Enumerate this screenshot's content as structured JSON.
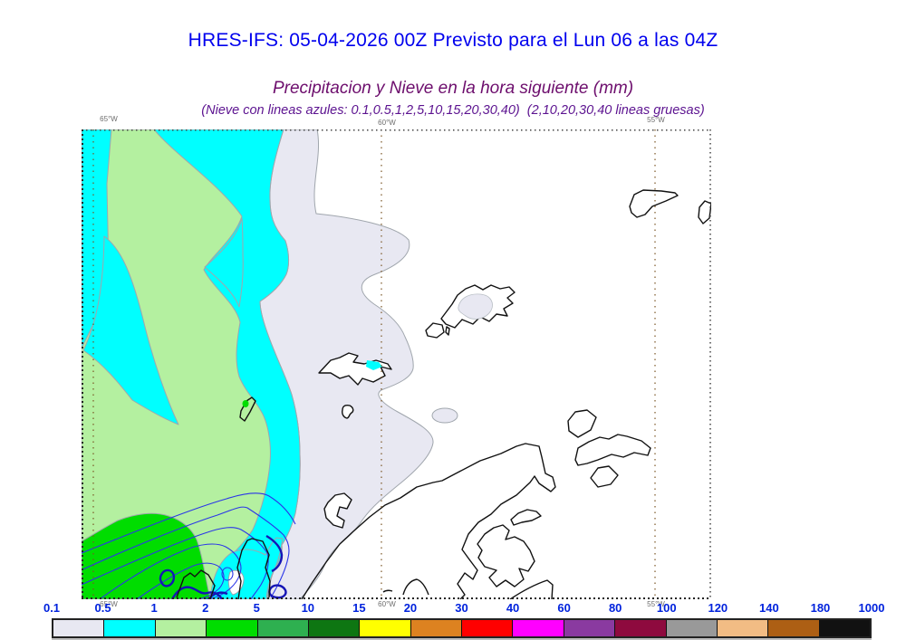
{
  "header": {
    "title": "HRES-IFS: 05-04-2026 00Z Previsto para el Lun 06 a las 04Z",
    "subtitle": "Precipitacion y Nieve en la hora siguiente (mm)",
    "note": "(Nieve con lineas azules: 0.1,0.5,1,2,5,10,15,20,30,40)  (2,10,20,30,40 lineas gruesas)"
  },
  "colors": {
    "title": "#0000ee",
    "subtitle": "#6d0e6d",
    "note": "#5c1390",
    "colorbar_labels": "#0022dd",
    "snow_contour_thin": "#2a35e8",
    "snow_contour_thick": "#1515b5",
    "coastline": "#111111",
    "precip_contour_outline": "#a0a6ad"
  },
  "map": {
    "meridians": [
      "65°W",
      "60°W",
      "55°W"
    ],
    "fill_levels": {
      "gray_0.1_0.5": "#e8e8f2",
      "cyan_0.5_1": "#00ffff",
      "lightgreen_1_2": "#b4f0a0",
      "green_2_5": "#00dd00"
    }
  },
  "colorbar": {
    "stops": [
      "0.1",
      "0.5",
      "1",
      "2",
      "5",
      "10",
      "15",
      "20",
      "30",
      "40",
      "60",
      "80",
      "100",
      "120",
      "140",
      "180",
      "1000"
    ],
    "colors": [
      "#e8e8f2",
      "#00ffff",
      "#b4f0a0",
      "#00dd00",
      "#2eb050",
      "#0e7612",
      "#ffff00",
      "#dd8220",
      "#ff0000",
      "#ff00ff",
      "#8a3aa0",
      "#8e0a3e",
      "#999999",
      "#f2bc84",
      "#ad5f14",
      "#111111"
    ]
  }
}
